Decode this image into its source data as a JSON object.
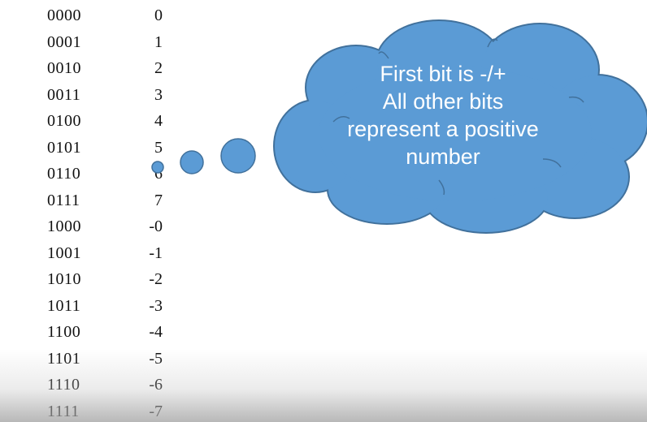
{
  "table": {
    "rows": [
      {
        "bits": "0000",
        "value": "0"
      },
      {
        "bits": "0001",
        "value": "1"
      },
      {
        "bits": "0010",
        "value": "2"
      },
      {
        "bits": "0011",
        "value": "3"
      },
      {
        "bits": "0100",
        "value": "4"
      },
      {
        "bits": "0101",
        "value": "5"
      },
      {
        "bits": "0110",
        "value": "6"
      },
      {
        "bits": "0111",
        "value": "7"
      },
      {
        "bits": "1000",
        "value": "-0"
      },
      {
        "bits": "1001",
        "value": "-1"
      },
      {
        "bits": "1010",
        "value": "-2"
      },
      {
        "bits": "1011",
        "value": "-3"
      },
      {
        "bits": "1100",
        "value": "-4"
      },
      {
        "bits": "1101",
        "value": "-5"
      },
      {
        "bits": "1110",
        "value": "-6"
      },
      {
        "bits": "1111",
        "value": "-7"
      }
    ]
  },
  "cloud": {
    "lines": [
      "First bit is -/+",
      "All other bits",
      "represent a positive",
      "number"
    ],
    "fill_color": "#5b9bd5",
    "stroke_color": "#41719c"
  }
}
